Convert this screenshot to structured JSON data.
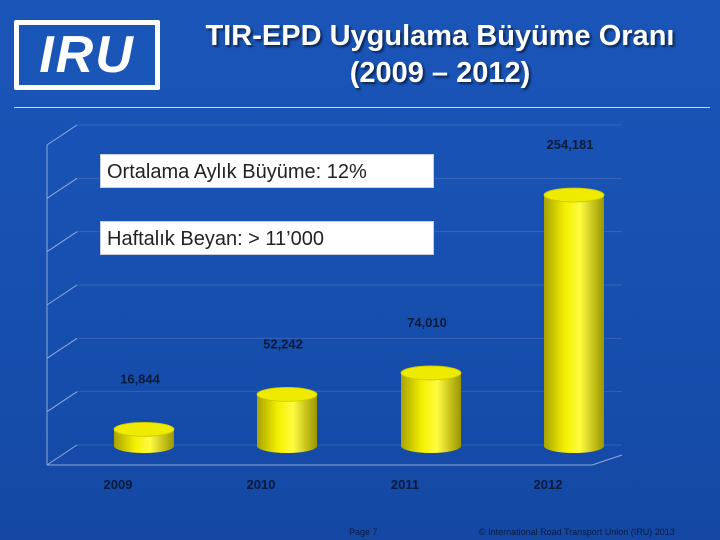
{
  "header": {
    "logo_text": "IRU",
    "title_line1": "TIR-EPD Uygulama Büyüme Oranı",
    "title_line2": "(2009 – 2012)"
  },
  "callouts": {
    "monthly_growth": "Ortalama Aylık Büyüme: 12%",
    "weekly_declarations": "Haftalık Beyan: > 11’000"
  },
  "chart_data": {
    "type": "bar",
    "categories": [
      "2009",
      "2010",
      "2011",
      "2012"
    ],
    "values": [
      16844,
      52242,
      74010,
      254181
    ],
    "value_labels": [
      "16,844",
      "52,242",
      "74,010",
      "254,181"
    ],
    "title": "TIR-EPD Uygulama Büyüme Oranı (2009 – 2012)",
    "xlabel": "",
    "ylabel": "",
    "ylim": [
      0,
      290000
    ],
    "grid": true,
    "legend": "none",
    "bar_color": "#e8e400"
  },
  "footer": {
    "page": "Page 7",
    "copyright": "© International Road Transport Union (IRU) 2013"
  }
}
